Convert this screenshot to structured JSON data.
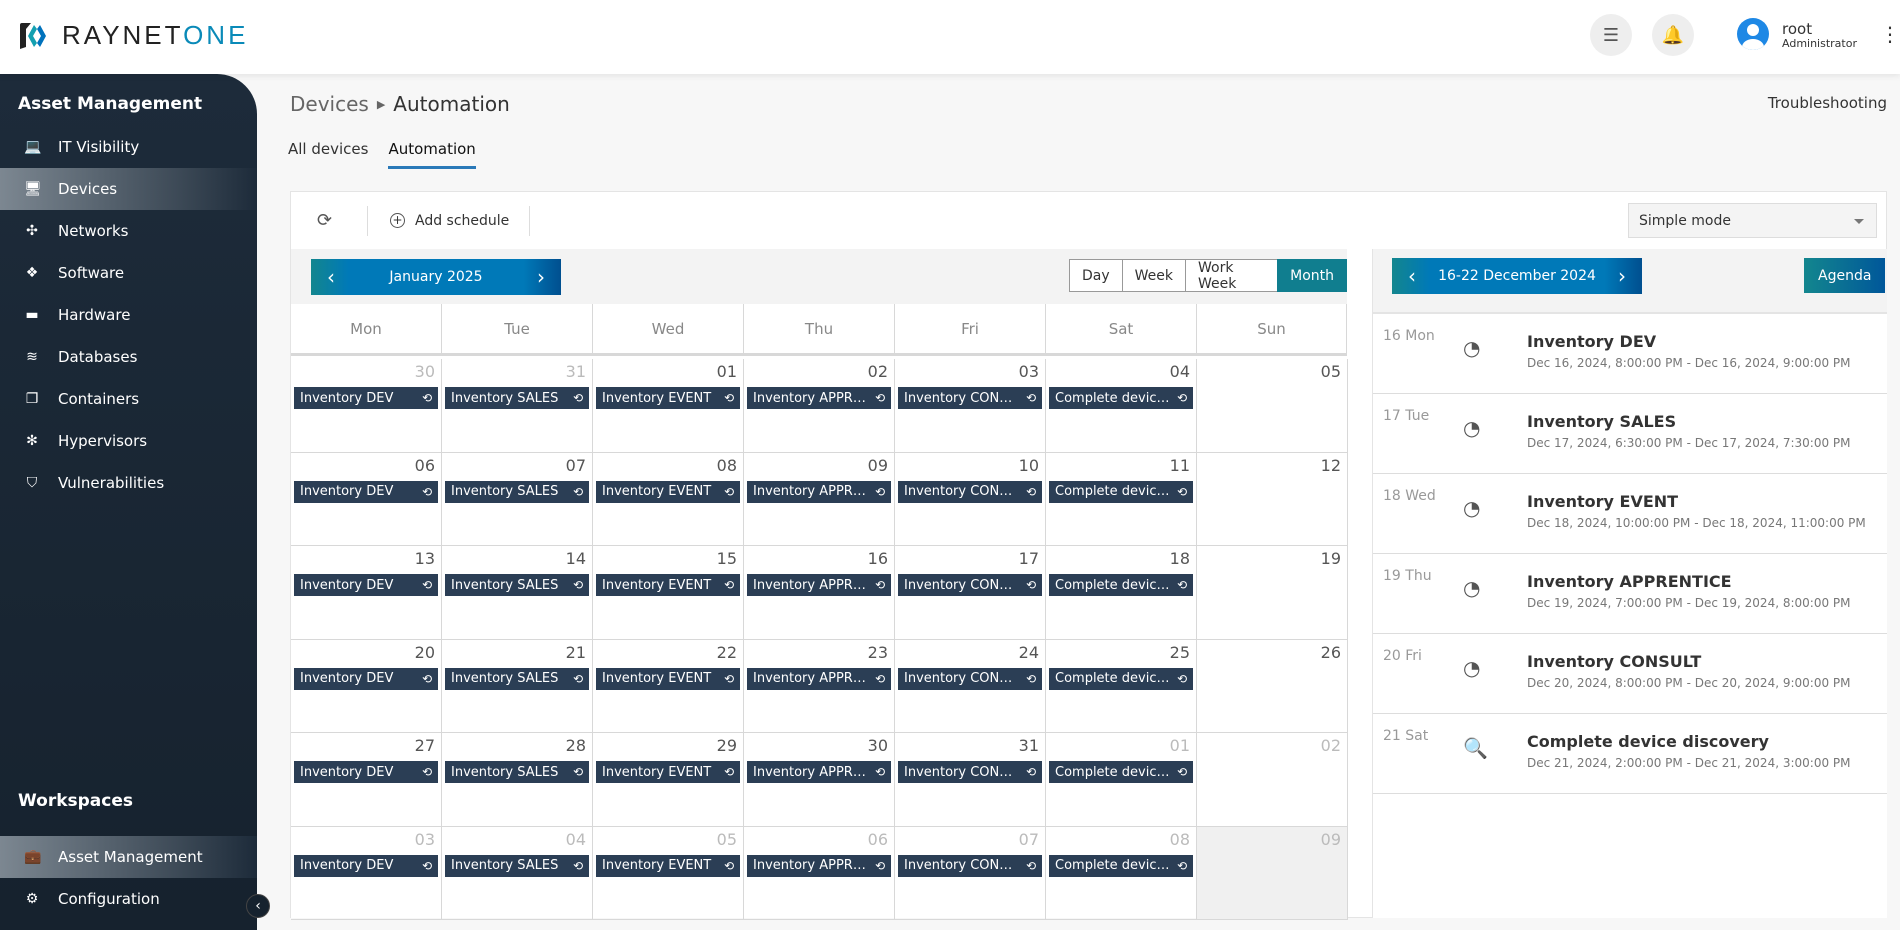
{
  "brand": {
    "name_a": "RAYNET",
    "name_b": "ONE"
  },
  "header": {
    "user": "root",
    "role": "Administrator"
  },
  "sidebar": {
    "section": "Asset Management",
    "items": [
      {
        "label": "IT Visibility",
        "icon": "laptop-icon"
      },
      {
        "label": "Devices",
        "icon": "monitor-icon",
        "active": true
      },
      {
        "label": "Networks",
        "icon": "network-icon"
      },
      {
        "label": "Software",
        "icon": "software-icon"
      },
      {
        "label": "Hardware",
        "icon": "hardware-icon"
      },
      {
        "label": "Databases",
        "icon": "database-icon"
      },
      {
        "label": "Containers",
        "icon": "container-icon"
      },
      {
        "label": "Hypervisors",
        "icon": "hypervisor-icon"
      },
      {
        "label": "Vulnerabilities",
        "icon": "shield-icon"
      }
    ],
    "workspaces_title": "Workspaces",
    "workspaces": [
      {
        "label": "Asset Management",
        "active": true
      },
      {
        "label": "Configuration"
      }
    ]
  },
  "breadcrumb": {
    "parent": "Devices",
    "current": "Automation"
  },
  "troubleshooting": "Troubleshooting",
  "tabs": [
    {
      "label": "All devices"
    },
    {
      "label": "Automation",
      "active": true
    }
  ],
  "toolbar": {
    "add_schedule": "Add schedule",
    "mode": "Simple mode"
  },
  "calendar": {
    "title": "January 2025",
    "views": [
      "Day",
      "Week",
      "Work Week",
      "Month"
    ],
    "active_view": "Month",
    "weekdays": [
      "Mon",
      "Tue",
      "Wed",
      "Thu",
      "Fri",
      "Sat",
      "Sun"
    ],
    "events": [
      "Inventory DEV",
      "Inventory SALES",
      "Inventory EVENT",
      "Inventory APPRENTICE",
      "Inventory CONSULT",
      "Complete device discovery"
    ],
    "weeks": [
      [
        [
          "30",
          1
        ],
        [
          "31",
          1
        ],
        [
          "01",
          0
        ],
        [
          "02",
          0
        ],
        [
          "03",
          0
        ],
        [
          "04",
          0
        ],
        [
          "05",
          0
        ]
      ],
      [
        [
          "06",
          0
        ],
        [
          "07",
          0
        ],
        [
          "08",
          0
        ],
        [
          "09",
          0
        ],
        [
          "10",
          0
        ],
        [
          "11",
          0
        ],
        [
          "12",
          0
        ]
      ],
      [
        [
          "13",
          0
        ],
        [
          "14",
          0
        ],
        [
          "15",
          0
        ],
        [
          "16",
          0
        ],
        [
          "17",
          0
        ],
        [
          "18",
          0
        ],
        [
          "19",
          0
        ]
      ],
      [
        [
          "20",
          0
        ],
        [
          "21",
          0
        ],
        [
          "22",
          0
        ],
        [
          "23",
          0
        ],
        [
          "24",
          0
        ],
        [
          "25",
          0
        ],
        [
          "26",
          0
        ]
      ],
      [
        [
          "27",
          0
        ],
        [
          "28",
          0
        ],
        [
          "29",
          0
        ],
        [
          "30",
          0
        ],
        [
          "31",
          0
        ],
        [
          "01",
          1
        ],
        [
          "02",
          1
        ]
      ],
      [
        [
          "03",
          1
        ],
        [
          "04",
          1
        ],
        [
          "05",
          1
        ],
        [
          "06",
          1
        ],
        [
          "07",
          1
        ],
        [
          "08",
          1
        ],
        [
          "09",
          1
        ]
      ]
    ]
  },
  "agenda": {
    "title": "16-22 December 2024",
    "view": "Agenda",
    "items": [
      {
        "day": "16 Mon",
        "title": "Inventory DEV",
        "time": "Dec 16, 2024, 8:00:00 PM - Dec 16, 2024, 9:00:00 PM",
        "icon": "radar-icon"
      },
      {
        "day": "17 Tue",
        "title": "Inventory SALES",
        "time": "Dec 17, 2024, 6:30:00 PM - Dec 17, 2024, 7:30:00 PM",
        "icon": "radar-icon"
      },
      {
        "day": "18 Wed",
        "title": "Inventory EVENT",
        "time": "Dec 18, 2024, 10:00:00 PM - Dec 18, 2024, 11:00:00 PM",
        "icon": "radar-icon"
      },
      {
        "day": "19 Thu",
        "title": "Inventory APPRENTICE",
        "time": "Dec 19, 2024, 7:00:00 PM - Dec 19, 2024, 8:00:00 PM",
        "icon": "radar-icon"
      },
      {
        "day": "20 Fri",
        "title": "Inventory CONSULT",
        "time": "Dec 20, 2024, 8:00:00 PM - Dec 20, 2024, 9:00:00 PM",
        "icon": "radar-icon"
      },
      {
        "day": "21 Sat",
        "title": "Complete device discovery",
        "time": "Dec 21, 2024, 2:00:00 PM - Dec 21, 2024, 3:00:00 PM",
        "icon": "search-icon"
      }
    ]
  },
  "colors": {
    "sidebar": "#1d2b3a",
    "event": "#2b3e55",
    "accent": "#0079b8",
    "active_view": "#107e8f"
  }
}
